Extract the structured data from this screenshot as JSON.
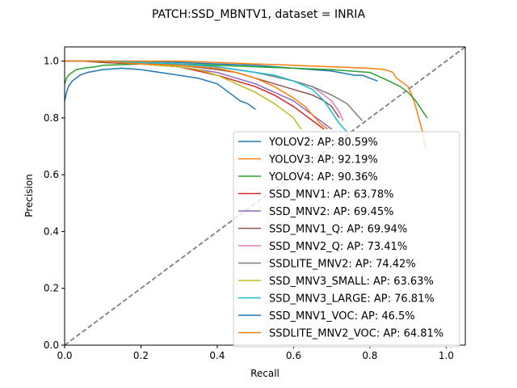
{
  "chart_data": {
    "type": "line",
    "title": "PATCH:SSD_MBNTV1, dataset = INRIA",
    "xlabel": "Recall",
    "ylabel": "Precision",
    "xlim": [
      0,
      1.05
    ],
    "ylim": [
      0,
      1.05
    ],
    "xticks": [
      "0.0",
      "0.2",
      "0.4",
      "0.6",
      "0.8",
      "1.0"
    ],
    "yticks": [
      "0.0",
      "0.2",
      "0.4",
      "0.6",
      "0.8",
      "1.0"
    ],
    "grid": false,
    "legend_position": "lower right",
    "reference_line": {
      "style": "dashed",
      "color": "#808080",
      "from": [
        0,
        0
      ],
      "to": [
        1.05,
        1.05
      ]
    },
    "series": [
      {
        "name": "YOLOV2: AP: 80.59%",
        "color": "#1f77b4",
        "x": [
          0.0,
          0.01,
          0.02,
          0.04,
          0.06,
          0.1,
          0.15,
          0.2,
          0.3,
          0.4,
          0.5,
          0.55,
          0.6,
          0.65,
          0.7,
          0.72,
          0.74,
          0.76,
          0.78,
          0.8,
          0.82
        ],
        "y": [
          1.0,
          1.0,
          1.0,
          1.0,
          1.0,
          1.0,
          1.0,
          1.0,
          0.995,
          0.99,
          0.985,
          0.98,
          0.975,
          0.97,
          0.965,
          0.96,
          0.955,
          0.95,
          0.95,
          0.94,
          0.93
        ]
      },
      {
        "name": "YOLOV3: AP: 92.19%",
        "color": "#ff7f0e",
        "x": [
          0.0,
          0.05,
          0.1,
          0.2,
          0.3,
          0.4,
          0.5,
          0.6,
          0.7,
          0.8,
          0.84,
          0.86,
          0.87,
          0.88,
          0.9,
          0.91,
          0.92,
          0.93,
          0.94,
          0.945,
          0.95
        ],
        "y": [
          1.0,
          1.0,
          1.0,
          1.0,
          1.0,
          0.995,
          0.99,
          0.985,
          0.98,
          0.975,
          0.97,
          0.96,
          0.94,
          0.93,
          0.91,
          0.88,
          0.84,
          0.79,
          0.74,
          0.7,
          0.69
        ]
      },
      {
        "name": "YOLOV4: AP: 90.36%",
        "color": "#2ca02c",
        "x": [
          0.0,
          0.005,
          0.01,
          0.02,
          0.03,
          0.05,
          0.08,
          0.1,
          0.2,
          0.3,
          0.4,
          0.5,
          0.6,
          0.7,
          0.8,
          0.85,
          0.88,
          0.9,
          0.92,
          0.94,
          0.95
        ],
        "y": [
          0.92,
          0.94,
          0.95,
          0.96,
          0.97,
          0.975,
          0.98,
          0.985,
          0.99,
          0.99,
          0.985,
          0.98,
          0.975,
          0.97,
          0.96,
          0.93,
          0.91,
          0.89,
          0.86,
          0.82,
          0.8
        ]
      },
      {
        "name": "SSD_MNV1: AP: 63.78%",
        "color": "#d62728",
        "x": [
          0.0,
          0.05,
          0.1,
          0.2,
          0.3,
          0.35,
          0.4,
          0.45,
          0.5,
          0.55,
          0.6,
          0.62,
          0.64,
          0.66,
          0.68
        ],
        "y": [
          1.0,
          1.0,
          0.995,
          0.99,
          0.98,
          0.965,
          0.95,
          0.93,
          0.91,
          0.88,
          0.84,
          0.82,
          0.8,
          0.78,
          0.76
        ]
      },
      {
        "name": "SSD_MNV2: AP: 69.45%",
        "color": "#9467bd",
        "x": [
          0.0,
          0.05,
          0.1,
          0.2,
          0.3,
          0.4,
          0.45,
          0.5,
          0.55,
          0.6,
          0.62,
          0.64,
          0.66,
          0.68,
          0.7
        ],
        "y": [
          1.0,
          1.0,
          0.995,
          0.99,
          0.98,
          0.96,
          0.94,
          0.92,
          0.89,
          0.86,
          0.84,
          0.82,
          0.8,
          0.78,
          0.76
        ]
      },
      {
        "name": "SSD_MNV1_Q: AP: 69.94%",
        "color": "#8c564b",
        "x": [
          0.0,
          0.05,
          0.1,
          0.2,
          0.3,
          0.4,
          0.45,
          0.5,
          0.55,
          0.6,
          0.65,
          0.68,
          0.7,
          0.72
        ],
        "y": [
          1.0,
          1.0,
          0.995,
          0.99,
          0.985,
          0.97,
          0.96,
          0.94,
          0.92,
          0.9,
          0.88,
          0.86,
          0.84,
          0.8
        ]
      },
      {
        "name": "SSD_MNV2_Q: AP: 73.41%",
        "color": "#e377c2",
        "x": [
          0.0,
          0.03,
          0.05,
          0.1,
          0.2,
          0.3,
          0.4,
          0.5,
          0.55,
          0.6,
          0.65,
          0.68,
          0.7,
          0.72,
          0.73
        ],
        "y": [
          1.0,
          1.0,
          1.0,
          1.0,
          0.995,
          0.99,
          0.98,
          0.96,
          0.95,
          0.93,
          0.91,
          0.88,
          0.86,
          0.82,
          0.79
        ]
      },
      {
        "name": "SSDLITE_MNV2: AP: 74.42%",
        "color": "#7f7f7f",
        "x": [
          0.0,
          0.05,
          0.1,
          0.2,
          0.3,
          0.4,
          0.5,
          0.6,
          0.65,
          0.7,
          0.74,
          0.76,
          0.78
        ],
        "y": [
          1.0,
          1.0,
          1.0,
          0.995,
          0.99,
          0.98,
          0.96,
          0.93,
          0.91,
          0.88,
          0.85,
          0.82,
          0.79
        ]
      },
      {
        "name": "SSD_MNV3_SMALL: AP: 63.63%",
        "color": "#bcbd22",
        "x": [
          0.0,
          0.05,
          0.1,
          0.2,
          0.3,
          0.35,
          0.4,
          0.45,
          0.5,
          0.55,
          0.58,
          0.6,
          0.62
        ],
        "y": [
          1.0,
          1.0,
          1.0,
          0.99,
          0.98,
          0.97,
          0.95,
          0.92,
          0.89,
          0.85,
          0.82,
          0.8,
          0.76
        ]
      },
      {
        "name": "SSD_MNV3_LARGE: AP: 76.81%",
        "color": "#17becf",
        "x": [
          0.0,
          0.05,
          0.1,
          0.2,
          0.3,
          0.4,
          0.5,
          0.55,
          0.6,
          0.65,
          0.68,
          0.7,
          0.72,
          0.74
        ],
        "y": [
          1.0,
          1.0,
          1.0,
          0.995,
          0.99,
          0.98,
          0.96,
          0.95,
          0.93,
          0.9,
          0.86,
          0.82,
          0.78,
          0.75
        ]
      },
      {
        "name": "SSD_MNV1_VOC: AP: 46.5%",
        "color": "#1f77b4",
        "x": [
          0.0,
          0.005,
          0.01,
          0.02,
          0.04,
          0.06,
          0.1,
          0.15,
          0.2,
          0.25,
          0.3,
          0.35,
          0.4,
          0.42,
          0.44,
          0.46,
          0.48,
          0.5
        ],
        "y": [
          0.86,
          0.89,
          0.91,
          0.93,
          0.95,
          0.96,
          0.97,
          0.975,
          0.97,
          0.96,
          0.95,
          0.94,
          0.92,
          0.9,
          0.88,
          0.86,
          0.85,
          0.83
        ]
      },
      {
        "name": "SSDLITE_MNV2_VOC: AP: 64.81%",
        "color": "#ff7f0e",
        "x": [
          0.0,
          0.05,
          0.1,
          0.2,
          0.3,
          0.4,
          0.45,
          0.5,
          0.55,
          0.6,
          0.63,
          0.65,
          0.67,
          0.69
        ],
        "y": [
          1.0,
          1.0,
          1.0,
          0.99,
          0.985,
          0.975,
          0.96,
          0.94,
          0.91,
          0.87,
          0.84,
          0.81,
          0.78,
          0.76
        ]
      }
    ]
  }
}
